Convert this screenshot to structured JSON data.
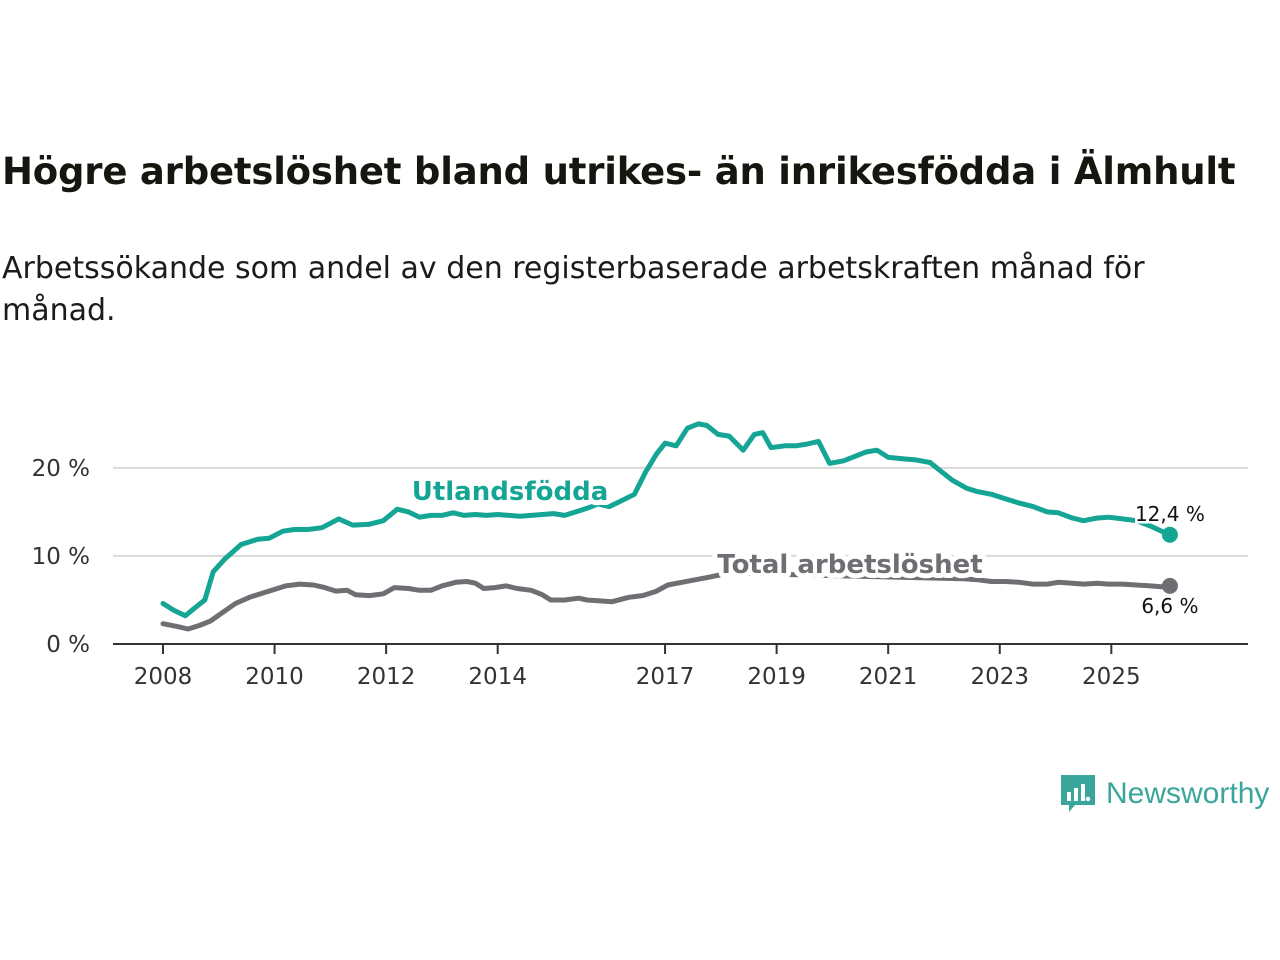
{
  "title": "Högre arbetslöshet bland utrikes- än inrikesfödda i Älmhult",
  "subtitle": "Arbetssökande som andel av den registerbaserade arbetskraften månad för månad.",
  "brand": "Newsworthy",
  "colors": {
    "utrikes": "#14a595",
    "total": "#6f6e73",
    "grid": "#d9d9d9",
    "axis": "#333333"
  },
  "chart_data": {
    "type": "line",
    "title": "Högre arbetslöshet bland utrikes- än inrikesfödda i Älmhult",
    "xlabel": "",
    "ylabel": "",
    "xlim": [
      2008.0,
      2027.45
    ],
    "ylim": [
      0,
      27.7
    ],
    "x_ticks": [
      2008,
      2010,
      2012,
      2014,
      2017,
      2019,
      2021,
      2023,
      2025
    ],
    "x_tick_labels": [
      "2008",
      "2010",
      "2012",
      "2014",
      "2017",
      "2019",
      "2021",
      "2023",
      "2025"
    ],
    "y_ticks": [
      0,
      10,
      20
    ],
    "y_tick_labels": [
      "0 %",
      "10 %",
      "20 %"
    ],
    "grid": true,
    "series": [
      {
        "name": "Utlandsfödda",
        "label": "Utlandsfödda",
        "end_label": "12,4 %",
        "color_key": "utrikes",
        "points": [
          [
            2008.0,
            4.6
          ],
          [
            2008.2,
            3.8
          ],
          [
            2008.4,
            3.2
          ],
          [
            2008.55,
            4.0
          ],
          [
            2008.75,
            5.0
          ],
          [
            2008.9,
            8.2
          ],
          [
            2009.1,
            9.6
          ],
          [
            2009.4,
            11.3
          ],
          [
            2009.7,
            11.9
          ],
          [
            2009.9,
            12.0
          ],
          [
            2010.15,
            12.8
          ],
          [
            2010.35,
            13.0
          ],
          [
            2010.6,
            13.0
          ],
          [
            2010.85,
            13.2
          ],
          [
            2011.15,
            14.2
          ],
          [
            2011.4,
            13.5
          ],
          [
            2011.7,
            13.6
          ],
          [
            2011.95,
            14.0
          ],
          [
            2012.2,
            15.3
          ],
          [
            2012.4,
            15.0
          ],
          [
            2012.6,
            14.4
          ],
          [
            2012.8,
            14.6
          ],
          [
            2013.0,
            14.6
          ],
          [
            2013.2,
            14.9
          ],
          [
            2013.4,
            14.6
          ],
          [
            2013.6,
            14.7
          ],
          [
            2013.8,
            14.6
          ],
          [
            2014.0,
            14.7
          ],
          [
            2014.2,
            14.6
          ],
          [
            2014.4,
            14.5
          ],
          [
            2014.6,
            14.6
          ],
          [
            2014.8,
            14.7
          ],
          [
            2015.0,
            14.8
          ],
          [
            2015.2,
            14.6
          ],
          [
            2015.4,
            15.0
          ],
          [
            2015.6,
            15.4
          ],
          [
            2015.8,
            15.9
          ],
          [
            2016.0,
            15.6
          ],
          [
            2016.2,
            16.2
          ],
          [
            2016.45,
            17.0
          ],
          [
            2016.65,
            19.5
          ],
          [
            2016.85,
            21.6
          ],
          [
            2017.0,
            22.8
          ],
          [
            2017.2,
            22.5
          ],
          [
            2017.4,
            24.5
          ],
          [
            2017.6,
            25.0
          ],
          [
            2017.75,
            24.8
          ],
          [
            2017.95,
            23.8
          ],
          [
            2018.15,
            23.6
          ],
          [
            2018.4,
            22.0
          ],
          [
            2018.6,
            23.8
          ],
          [
            2018.75,
            24.0
          ],
          [
            2018.9,
            22.3
          ],
          [
            2019.15,
            22.5
          ],
          [
            2019.35,
            22.5
          ],
          [
            2019.55,
            22.7
          ],
          [
            2019.75,
            23.0
          ],
          [
            2019.95,
            20.5
          ],
          [
            2020.2,
            20.8
          ],
          [
            2020.4,
            21.3
          ],
          [
            2020.6,
            21.8
          ],
          [
            2020.8,
            22.0
          ],
          [
            2021.0,
            21.2
          ],
          [
            2021.3,
            21.0
          ],
          [
            2021.5,
            20.9
          ],
          [
            2021.75,
            20.6
          ],
          [
            2021.95,
            19.6
          ],
          [
            2022.15,
            18.6
          ],
          [
            2022.4,
            17.7
          ],
          [
            2022.6,
            17.3
          ],
          [
            2022.85,
            17.0
          ],
          [
            2023.1,
            16.5
          ],
          [
            2023.35,
            16.0
          ],
          [
            2023.6,
            15.6
          ],
          [
            2023.85,
            15.0
          ],
          [
            2024.05,
            14.9
          ],
          [
            2024.3,
            14.3
          ],
          [
            2024.5,
            14.0
          ],
          [
            2024.75,
            14.3
          ],
          [
            2024.95,
            14.4
          ],
          [
            2025.2,
            14.2
          ],
          [
            2025.45,
            14.0
          ],
          [
            2025.7,
            13.4
          ],
          [
            2025.9,
            12.8
          ],
          [
            2026.05,
            12.4
          ]
        ]
      },
      {
        "name": "Total arbetslöshet",
        "label": "Total arbetslöshet",
        "end_label": "6,6 %",
        "color_key": "total",
        "points": [
          [
            2008.0,
            2.3
          ],
          [
            2008.25,
            2.0
          ],
          [
            2008.45,
            1.7
          ],
          [
            2008.65,
            2.1
          ],
          [
            2008.85,
            2.6
          ],
          [
            2009.05,
            3.5
          ],
          [
            2009.3,
            4.6
          ],
          [
            2009.55,
            5.3
          ],
          [
            2009.8,
            5.8
          ],
          [
            2010.0,
            6.2
          ],
          [
            2010.2,
            6.6
          ],
          [
            2010.45,
            6.8
          ],
          [
            2010.7,
            6.7
          ],
          [
            2010.9,
            6.4
          ],
          [
            2011.1,
            6.0
          ],
          [
            2011.3,
            6.1
          ],
          [
            2011.45,
            5.6
          ],
          [
            2011.7,
            5.5
          ],
          [
            2011.95,
            5.7
          ],
          [
            2012.15,
            6.4
          ],
          [
            2012.4,
            6.3
          ],
          [
            2012.6,
            6.1
          ],
          [
            2012.8,
            6.1
          ],
          [
            2013.0,
            6.6
          ],
          [
            2013.25,
            7.0
          ],
          [
            2013.45,
            7.1
          ],
          [
            2013.6,
            6.9
          ],
          [
            2013.75,
            6.3
          ],
          [
            2013.95,
            6.4
          ],
          [
            2014.15,
            6.6
          ],
          [
            2014.35,
            6.3
          ],
          [
            2014.6,
            6.1
          ],
          [
            2014.8,
            5.6
          ],
          [
            2014.95,
            5.0
          ],
          [
            2015.2,
            5.0
          ],
          [
            2015.45,
            5.2
          ],
          [
            2015.6,
            5.0
          ],
          [
            2015.8,
            4.9
          ],
          [
            2016.05,
            4.8
          ],
          [
            2016.35,
            5.3
          ],
          [
            2016.6,
            5.5
          ],
          [
            2016.85,
            6.0
          ],
          [
            2017.05,
            6.7
          ],
          [
            2017.3,
            7.0
          ],
          [
            2017.55,
            7.3
          ],
          [
            2017.8,
            7.6
          ],
          [
            2018.1,
            8.0
          ],
          [
            2018.3,
            8.3
          ],
          [
            2018.5,
            8.0
          ],
          [
            2022.35,
            7.4
          ],
          [
            2022.6,
            7.3
          ],
          [
            2022.85,
            7.1
          ],
          [
            2023.1,
            7.1
          ],
          [
            2023.35,
            7.0
          ],
          [
            2023.6,
            6.8
          ],
          [
            2023.85,
            6.8
          ],
          [
            2024.05,
            7.0
          ],
          [
            2024.3,
            6.9
          ],
          [
            2024.5,
            6.8
          ],
          [
            2024.75,
            6.9
          ],
          [
            2024.95,
            6.8
          ],
          [
            2025.2,
            6.8
          ],
          [
            2025.45,
            6.7
          ],
          [
            2025.7,
            6.6
          ],
          [
            2025.9,
            6.5
          ],
          [
            2026.05,
            6.6
          ]
        ]
      }
    ]
  }
}
